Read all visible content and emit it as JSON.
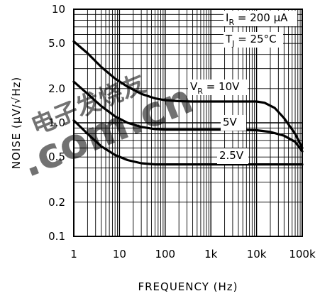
{
  "chart_data": {
    "type": "line",
    "title": "",
    "xlabel": "FREQUENCY (Hz)",
    "ylabel": "NOISE (μV/√Hz)",
    "x_scale": "log",
    "y_scale": "log",
    "xlim": [
      1,
      100000
    ],
    "ylim": [
      0.1,
      10
    ],
    "x_ticks": [
      {
        "value": 1,
        "label": "1"
      },
      {
        "value": 10,
        "label": "10"
      },
      {
        "value": 100,
        "label": "100"
      },
      {
        "value": 1000,
        "label": "1k"
      },
      {
        "value": 10000,
        "label": "10k"
      },
      {
        "value": 100000,
        "label": "100k"
      }
    ],
    "y_ticks": [
      {
        "value": 0.1,
        "label": "0.1"
      },
      {
        "value": 0.2,
        "label": "0.2"
      },
      {
        "value": 0.5,
        "label": "0.5"
      },
      {
        "value": 1.0,
        "label": "1.0"
      },
      {
        "value": 2.0,
        "label": "2.0"
      },
      {
        "value": 5.0,
        "label": "5.0"
      },
      {
        "value": 10,
        "label": "10"
      }
    ],
    "grid": true,
    "conditions": {
      "ir": {
        "prefix": "I",
        "sub": "R",
        "suffix": " = 200 μA"
      },
      "tj": {
        "prefix": "T",
        "sub": "J",
        "suffix": " = 25°C"
      }
    },
    "series": [
      {
        "label_prefix": "V",
        "label_sub": "R",
        "label_suffix": " = 10V",
        "x": [
          1,
          2,
          4,
          8,
          15,
          30,
          60,
          100,
          200,
          400,
          1000,
          3000,
          10000,
          15000,
          25000,
          40000,
          70000,
          100000
        ],
        "y": [
          5.2,
          4.1,
          3.1,
          2.45,
          2.08,
          1.8,
          1.64,
          1.58,
          1.55,
          1.54,
          1.54,
          1.54,
          1.54,
          1.5,
          1.35,
          1.1,
          0.8,
          0.6
        ]
      },
      {
        "label_prefix": "",
        "label_sub": "",
        "label_suffix": "5V",
        "x": [
          1,
          2,
          4,
          8,
          15,
          30,
          60,
          100,
          200,
          400,
          1000,
          3000,
          10000,
          20000,
          40000,
          70000,
          100000
        ],
        "y": [
          2.3,
          1.8,
          1.4,
          1.14,
          1.0,
          0.92,
          0.88,
          0.87,
          0.87,
          0.87,
          0.87,
          0.87,
          0.86,
          0.83,
          0.77,
          0.68,
          0.56
        ]
      },
      {
        "label_prefix": "",
        "label_sub": "",
        "label_suffix": "2.5V",
        "x": [
          1,
          2,
          4,
          8,
          15,
          30,
          60,
          100,
          1000,
          10000,
          100000
        ],
        "y": [
          1.05,
          0.8,
          0.62,
          0.52,
          0.47,
          0.44,
          0.43,
          0.43,
          0.43,
          0.43,
          0.43
        ]
      }
    ]
  },
  "watermark": {
    "line1": "电子发烧友",
    "line2": ".com.cn"
  }
}
